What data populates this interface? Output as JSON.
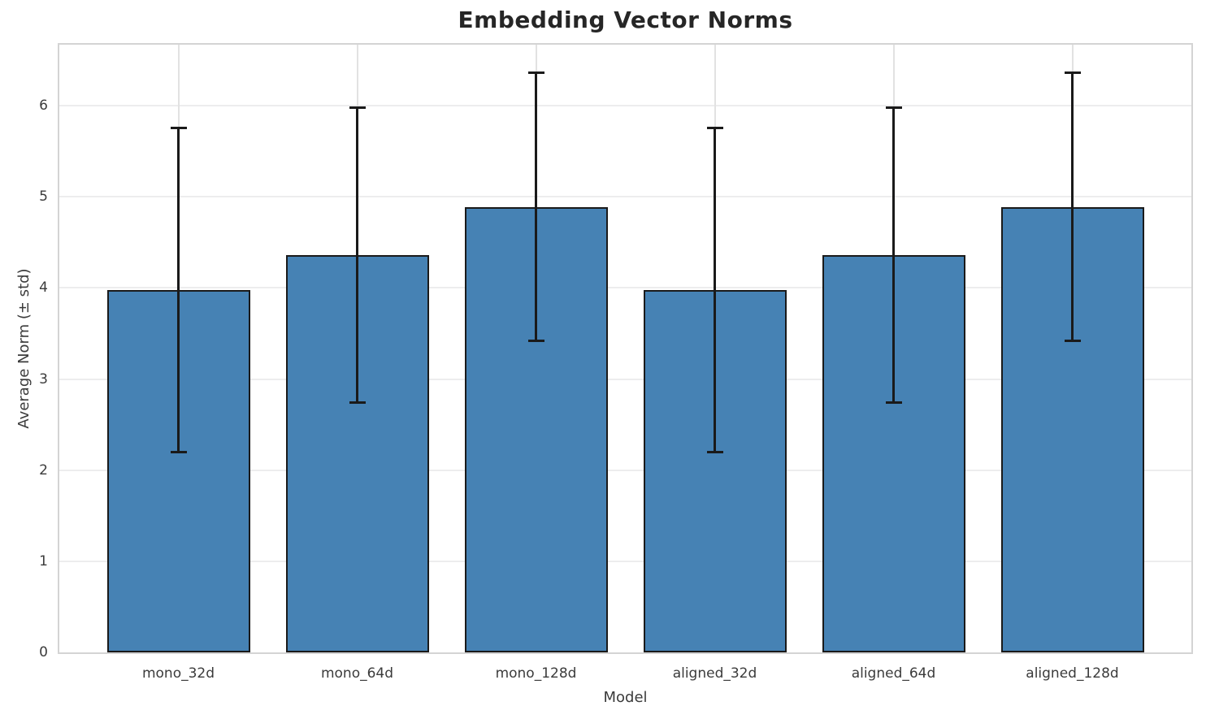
{
  "chart_data": {
    "type": "bar",
    "title": "Embedding Vector Norms",
    "xlabel": "Model",
    "ylabel": "Average Norm (± std)",
    "categories": [
      "mono_32d",
      "mono_64d",
      "mono_128d",
      "aligned_32d",
      "aligned_64d",
      "aligned_128d"
    ],
    "values": [
      3.98,
      4.36,
      4.89,
      3.98,
      4.36,
      4.89
    ],
    "std": [
      1.78,
      1.62,
      1.47,
      1.78,
      1.62,
      1.47
    ],
    "yticks": [
      "0",
      "1",
      "2",
      "3",
      "4",
      "5",
      "6"
    ],
    "ylim": [
      0,
      6.67
    ],
    "grid": true,
    "legend_position": "none",
    "colors": {
      "bar_fill": "#4682B4",
      "bar_edge": "#1a1a1a",
      "error_bar": "#1a1a1a",
      "grid_h": "#ededee",
      "grid_v": "#e2e2e2",
      "spine": "#d4d4d4",
      "title_text": "#262626",
      "axis_text": "#3b3b3b"
    }
  }
}
